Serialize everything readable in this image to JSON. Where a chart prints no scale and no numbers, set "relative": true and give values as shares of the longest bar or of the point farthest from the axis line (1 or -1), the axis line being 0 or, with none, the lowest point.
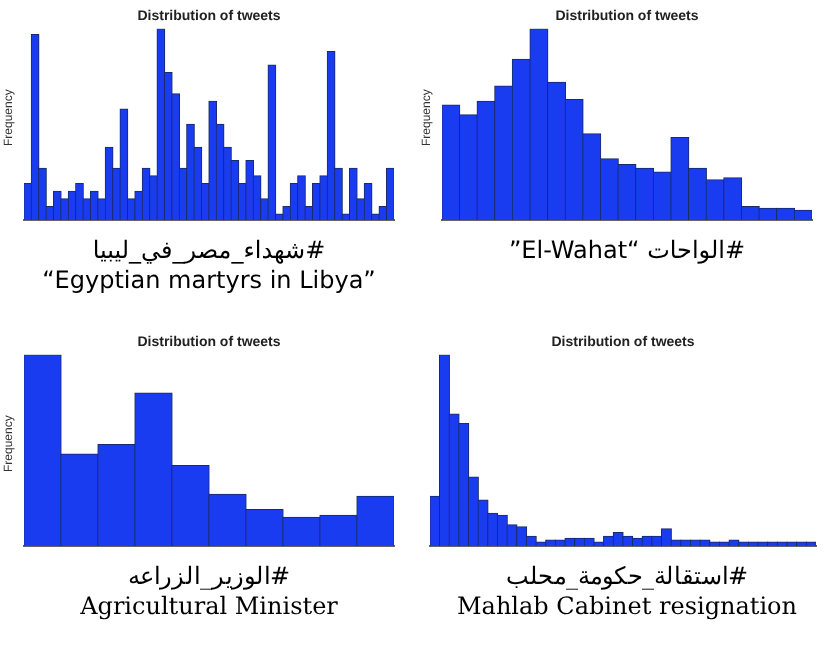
{
  "chart_data": [
    {
      "type": "bar",
      "title": "Distribution of tweets",
      "ylabel": "Frequency",
      "relative": true,
      "color": "#1a3cf0",
      "categories": [
        null,
        null,
        null,
        null,
        null,
        null,
        null,
        null,
        null,
        null,
        null,
        null,
        null,
        null,
        null,
        null,
        null,
        null,
        null,
        null,
        null,
        null,
        null,
        null,
        null,
        null,
        null,
        null,
        null,
        null,
        null,
        null,
        null,
        null,
        null,
        null,
        null,
        null,
        null,
        null,
        null,
        null,
        null,
        null,
        null,
        null,
        null,
        null,
        null,
        null
      ],
      "values": [
        0.19,
        0.97,
        0.27,
        0.07,
        0.15,
        0.11,
        0.15,
        0.19,
        0.11,
        0.15,
        0.11,
        0.38,
        0.27,
        0.58,
        0.11,
        0.15,
        0.27,
        0.23,
        1,
        0.77,
        0.66,
        0.27,
        0.5,
        0.38,
        0.19,
        0.62,
        0.5,
        0.38,
        0.31,
        0.19,
        0.31,
        0.23,
        0.11,
        0.81,
        0.03,
        0.07,
        0.19,
        0.23,
        0.07,
        0.19,
        0.23,
        0.88,
        0.27,
        0.03,
        0.27,
        0.11,
        0.19,
        0.03,
        0.07,
        0.27
      ],
      "annotations": [
        "#شهداء_مصر_في_ليبيا",
        "“Egyptian martyrs in Libya”"
      ]
    },
    {
      "type": "bar",
      "title": "Distribution of tweets",
      "ylabel": "Frequency",
      "relative": true,
      "color": "#1a3cf0",
      "categories": [
        null,
        null,
        null,
        null,
        null,
        null,
        null,
        null,
        null,
        null,
        null,
        null,
        null,
        null,
        null,
        null,
        null,
        null,
        null,
        null,
        null
      ],
      "values": [
        0.6,
        0.55,
        0.62,
        0.7,
        0.84,
        1,
        0.72,
        0.63,
        0.45,
        0.32,
        0.29,
        0.27,
        0.25,
        0.43,
        0.27,
        0.21,
        0.22,
        0.07,
        0.06,
        0.06,
        0.05
      ],
      "annotations": [
        "#الواحات  “El-Wahat”"
      ]
    },
    {
      "type": "bar",
      "title": "Distribution of tweets",
      "ylabel": "Frequency",
      "relative": true,
      "color": "#1a3cf0",
      "categories": [
        null,
        null,
        null,
        null,
        null,
        null,
        null,
        null,
        null,
        null
      ],
      "values": [
        1,
        0.48,
        0.53,
        0.8,
        0.42,
        0.27,
        0.19,
        0.15,
        0.16,
        0.26
      ],
      "annotations": [
        "#الوزير_الزراعه",
        "Agricultural Minister"
      ]
    },
    {
      "type": "bar",
      "title": "Distribution of tweets",
      "relative": true,
      "color": "#1a3cf0",
      "categories": [
        null,
        null,
        null,
        null,
        null,
        null,
        null,
        null,
        null,
        null,
        null,
        null,
        null,
        null,
        null,
        null,
        null,
        null,
        null,
        null,
        null,
        null,
        null,
        null,
        null,
        null,
        null,
        null,
        null,
        null,
        null,
        null,
        null,
        null,
        null,
        null,
        null,
        null,
        null,
        null
      ],
      "values": [
        0.26,
        1,
        0.69,
        0.64,
        0.36,
        0.24,
        0.17,
        0.16,
        0.11,
        0.1,
        0.05,
        0.02,
        0.03,
        0.03,
        0.04,
        0.04,
        0.04,
        0.02,
        0.05,
        0.07,
        0.05,
        0.04,
        0.05,
        0.05,
        0.09,
        0.03,
        0.03,
        0.03,
        0.03,
        0.02,
        0.02,
        0.03,
        0.02,
        0.02,
        0.02,
        0.02,
        0.02,
        0.02,
        0.02,
        0.02
      ],
      "annotations": [
        "#استقالة_حكومة_محلب",
        "Mahlab Cabinet resignation"
      ]
    }
  ]
}
